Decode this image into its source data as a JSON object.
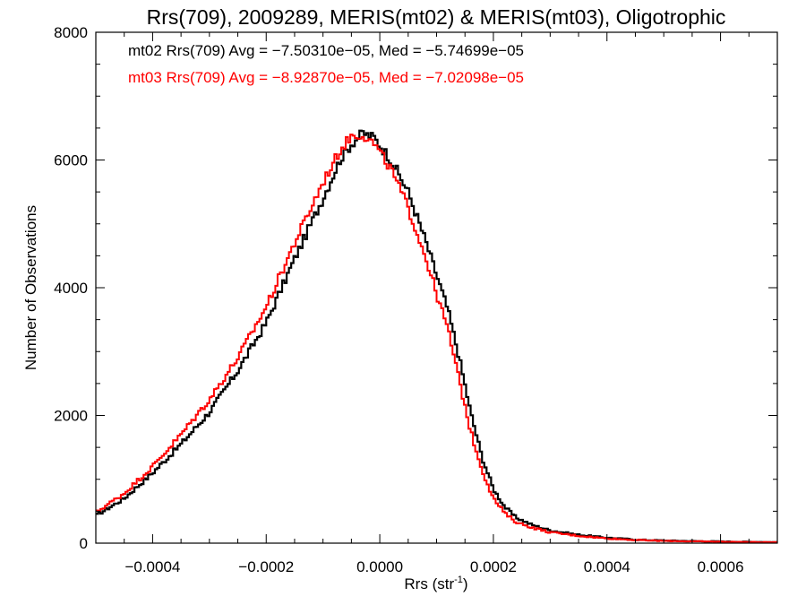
{
  "chart_data": {
    "type": "histogram",
    "title": "Rrs(709), 2009289, MERIS(mt02) & MERIS(mt03), Oligotrophic",
    "xlabel": "Rrs (str",
    "xlabel_sup": "-1",
    "xlabel_close": ")",
    "ylabel": "Number of Observations",
    "xlim": [
      -0.0005,
      0.0007
    ],
    "ylim": [
      0,
      8000
    ],
    "x_ticks": [
      -0.0004,
      -0.0002,
      0.0,
      0.0002,
      0.0004,
      0.0006
    ],
    "x_tick_labels": [
      "−0.0004",
      "−0.0002",
      "0.0000",
      "0.0002",
      "0.0004",
      "0.0006"
    ],
    "y_ticks": [
      0,
      2000,
      4000,
      6000,
      8000
    ],
    "y_tick_labels": [
      "0",
      "2000",
      "4000",
      "6000",
      "8000"
    ],
    "x_minor_step": 5e-05,
    "y_minor_step": 500,
    "bin_width": 4e-06,
    "annotations": [
      {
        "text": "mt02 Rrs(709) Avg = −7.50310e−05, Med = −5.74699e−05",
        "color": "#000000"
      },
      {
        "text": "mt03 Rrs(709) Avg = −8.92870e−05, Med = −7.02098e−05",
        "color": "#ff0000"
      }
    ],
    "series": [
      {
        "color": "#000000",
        "profile_x": [
          -0.0005,
          -0.00045,
          -0.0004,
          -0.00035,
          -0.0003,
          -0.00025,
          -0.0002,
          -0.00015,
          -0.0001,
          -7e-05,
          -5e-05,
          -3e-05,
          -1e-05,
          2e-05,
          5e-05,
          8e-05,
          0.0001,
          0.00012,
          0.00014,
          0.00016,
          0.00018,
          0.0002,
          0.00022,
          0.00024,
          0.00027,
          0.0003,
          0.00035,
          0.0004,
          0.00045,
          0.0005,
          0.0006,
          0.0007
        ],
        "profile_y": [
          430,
          700,
          1100,
          1550,
          2050,
          2700,
          3450,
          4450,
          5400,
          6000,
          6250,
          6420,
          6350,
          6000,
          5500,
          4750,
          4200,
          3650,
          2900,
          2050,
          1350,
          850,
          570,
          400,
          280,
          200,
          130,
          85,
          55,
          40,
          25,
          15
        ]
      },
      {
        "color": "#ff0000",
        "profile_x": [
          -0.0005,
          -0.00045,
          -0.0004,
          -0.00035,
          -0.0003,
          -0.00025,
          -0.0002,
          -0.00015,
          -0.0001,
          -7e-05,
          -5e-05,
          -3e-05,
          -1e-05,
          2e-05,
          5e-05,
          8e-05,
          0.0001,
          0.00012,
          0.00014,
          0.00016,
          0.00018,
          0.0002,
          0.00022,
          0.00024,
          0.00027,
          0.0003,
          0.00035,
          0.0004,
          0.00045,
          0.0005,
          0.0006,
          0.0007
        ],
        "profile_y": [
          480,
          780,
          1200,
          1700,
          2250,
          2900,
          3700,
          4700,
          5650,
          6150,
          6380,
          6400,
          6250,
          5850,
          5250,
          4500,
          3900,
          3350,
          2550,
          1750,
          1150,
          700,
          470,
          330,
          240,
          170,
          115,
          75,
          50,
          35,
          22,
          12
        ]
      }
    ]
  }
}
